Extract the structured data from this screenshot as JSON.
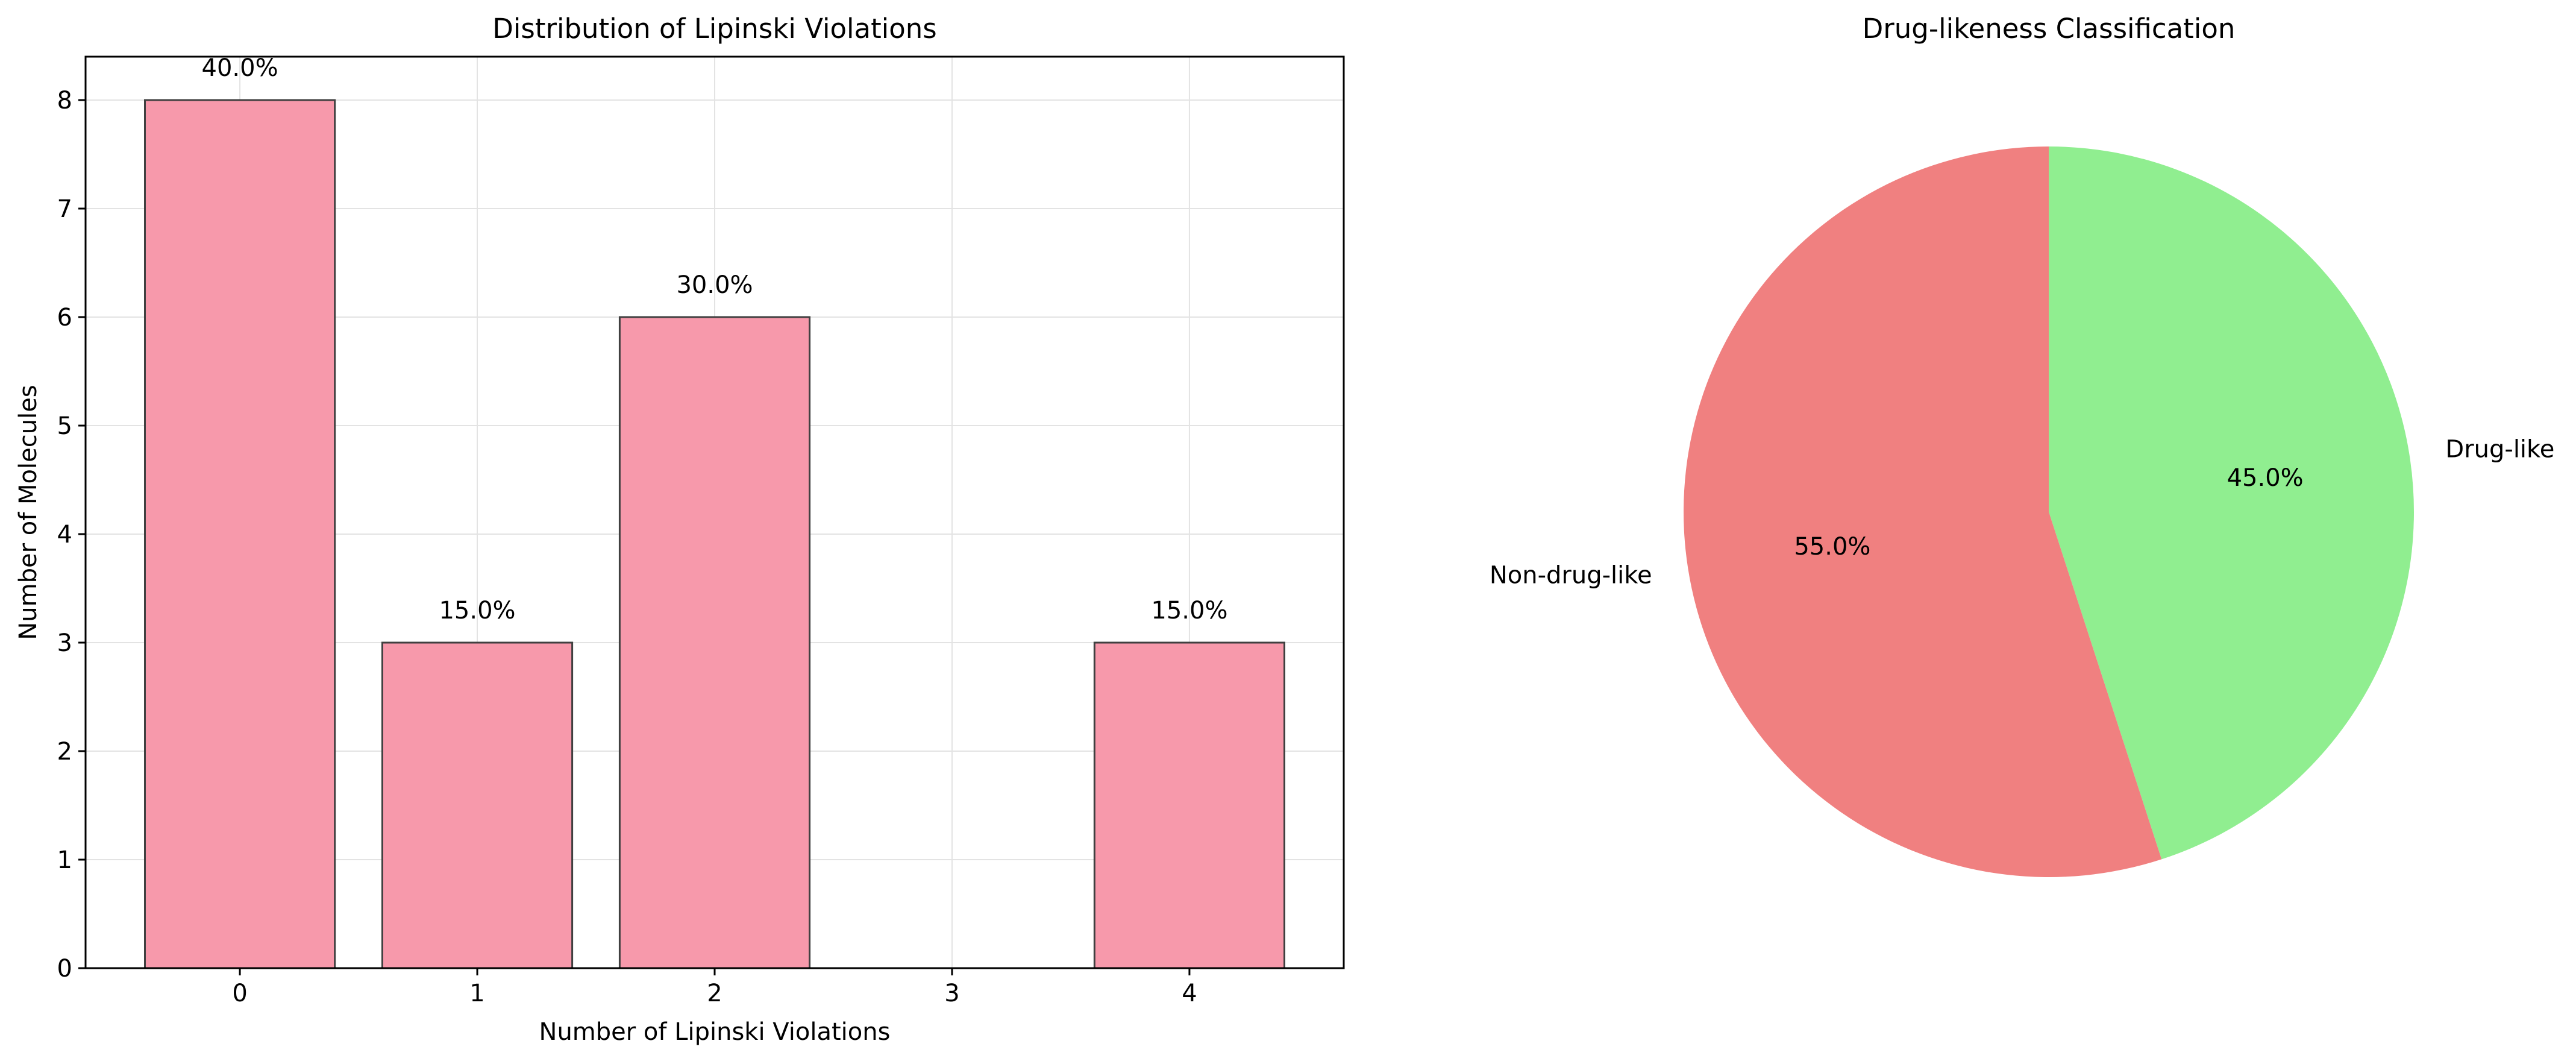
{
  "chart_data": [
    {
      "type": "bar",
      "title": "Distribution of Lipinski Violations",
      "xlabel": "Number of Lipinski Violations",
      "ylabel": "Number of Molecules",
      "categories": [
        "0",
        "1",
        "2",
        "3",
        "4"
      ],
      "x": [
        0,
        1,
        2,
        3,
        4
      ],
      "values": [
        8,
        3,
        6,
        0,
        3
      ],
      "data_labels": [
        "40.0%",
        "15.0%",
        "30.0%",
        "",
        "15.0%"
      ],
      "ylim": [
        0,
        8.4
      ],
      "xlim": [
        -0.65,
        4.65
      ],
      "yticks": [
        "0",
        "1",
        "2",
        "3",
        "4",
        "5",
        "6",
        "7",
        "8"
      ],
      "grid": true,
      "bar_color": "#f799ab",
      "bar_edge_color": "#404040"
    },
    {
      "type": "pie",
      "title": "Drug-likeness Classification",
      "slices": [
        {
          "label": "Drug-like",
          "value": 45.0,
          "pct_label": "45.0%",
          "color": "#90ee90"
        },
        {
          "label": "Non-drug-like",
          "value": 55.0,
          "pct_label": "55.0%",
          "color": "#f08080"
        }
      ],
      "start_angle_deg": 90,
      "direction": "clockwise"
    }
  ]
}
